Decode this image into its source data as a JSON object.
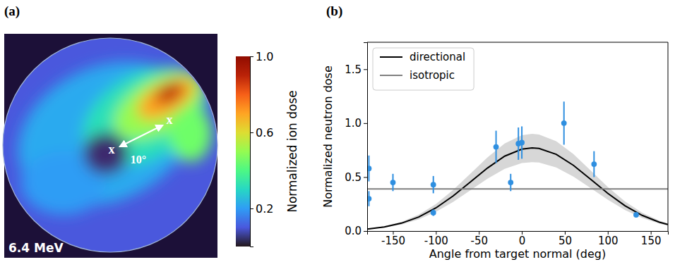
{
  "chart_data": [
    {
      "type": "image",
      "panel": "(a)",
      "energy_label": "6.4 MeV",
      "annotations": [
        "x",
        "x",
        "10°"
      ],
      "colorbar": {
        "label": "Normalized ion dose",
        "range": [
          0,
          1
        ],
        "ticks": [
          0.2,
          0.6,
          {
            "value": 1,
            "label": "1.0"
          }
        ]
      }
    },
    {
      "type": "scatter",
      "panel": "(b)",
      "xlabel": "Angle from target normal (deg)",
      "ylabel": "Normalized neutron dose",
      "xlim": [
        -180,
        170
      ],
      "xticks": [
        -150,
        -100,
        -50,
        0,
        50,
        100,
        150
      ],
      "ylim": [
        0,
        1.75
      ],
      "yticks": [
        {
          "value": 0,
          "label": "0.0"
        },
        0.5,
        {
          "value": 1,
          "label": "1.0"
        },
        1.5
      ],
      "legend": "upper left",
      "series": [
        {
          "type": "scatter",
          "color": "#2f8fe0",
          "marker": "circle",
          "x": [
            -178,
            -178,
            -150,
            -103,
            -103,
            -30,
            -13,
            -4,
            0,
            49,
            84,
            133
          ],
          "values": [
            0.58,
            0.3,
            0.45,
            0.43,
            0.17,
            0.78,
            0.45,
            0.81,
            0.82,
            1.0,
            0.62,
            0.15
          ],
          "errors": [
            0.12,
            0.07,
            0.08,
            0.08,
            0.03,
            0.15,
            0.08,
            0.15,
            0.15,
            0.2,
            0.12,
            0.02
          ]
        },
        {
          "name": "directional",
          "type": "line",
          "color": "#000000",
          "x": [
            -180,
            -160,
            -140,
            -120,
            -100,
            -80,
            -60,
            -40,
            -20,
            0,
            12,
            20,
            40,
            60,
            80,
            100,
            120,
            140,
            160,
            170
          ],
          "values": [
            0.018,
            0.038,
            0.073,
            0.13,
            0.214,
            0.325,
            0.454,
            0.584,
            0.694,
            0.759,
            0.77,
            0.765,
            0.711,
            0.609,
            0.48,
            0.349,
            0.234,
            0.145,
            0.082,
            0.06
          ],
          "band_low": [
            0.015,
            0.032,
            0.061,
            0.108,
            0.178,
            0.27,
            0.377,
            0.485,
            0.576,
            0.63,
            0.639,
            0.635,
            0.59,
            0.505,
            0.398,
            0.29,
            0.194,
            0.12,
            0.068,
            0.05
          ],
          "band_high": [
            0.021,
            0.044,
            0.085,
            0.152,
            0.25,
            0.38,
            0.531,
            0.683,
            0.812,
            0.888,
            0.901,
            0.895,
            0.832,
            0.713,
            0.562,
            0.408,
            0.274,
            0.17,
            0.096,
            0.07
          ]
        },
        {
          "name": "isotropic",
          "type": "line",
          "color": "#808080",
          "x": [
            -180,
            170
          ],
          "values": [
            0.39,
            0.39
          ]
        }
      ]
    }
  ]
}
